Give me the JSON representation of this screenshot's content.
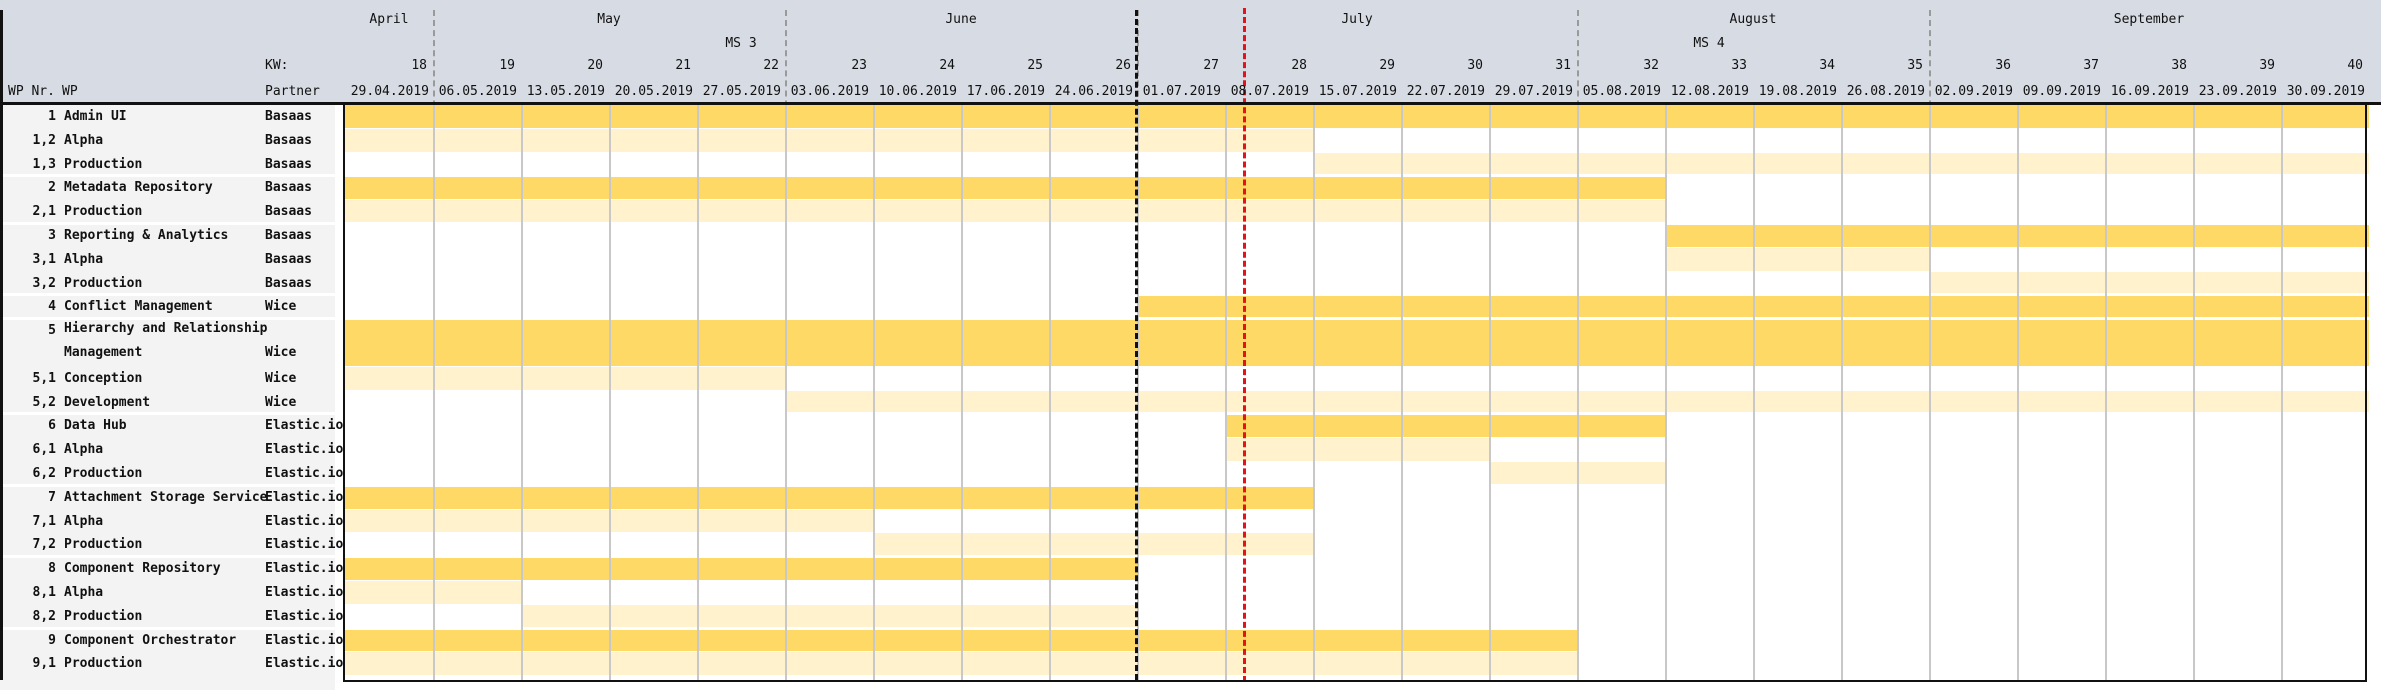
{
  "chart_data": {
    "type": "gantt",
    "header": {
      "months": [
        {
          "label": "April",
          "start_week": 18,
          "end_week": 18
        },
        {
          "label": "May",
          "start_week": 19,
          "end_week": 22
        },
        {
          "label": "June",
          "start_week": 23,
          "end_week": 26
        },
        {
          "label": "July",
          "start_week": 27,
          "end_week": 31
        },
        {
          "label": "August",
          "start_week": 32,
          "end_week": 35
        },
        {
          "label": "September",
          "start_week": 36,
          "end_week": 40
        }
      ],
      "milestones": [
        {
          "label": "MS 3",
          "week": 22
        },
        {
          "label": "MS 4",
          "week": 33
        }
      ],
      "kw_label": "KW:",
      "col_wpnr": "WP Nr.",
      "col_wp": "WP",
      "col_partner": "Partner"
    },
    "weeks": [
      {
        "kw": "18",
        "date": "29.04.2019"
      },
      {
        "kw": "19",
        "date": "06.05.2019"
      },
      {
        "kw": "20",
        "date": "13.05.2019"
      },
      {
        "kw": "21",
        "date": "20.05.2019"
      },
      {
        "kw": "22",
        "date": "27.05.2019"
      },
      {
        "kw": "23",
        "date": "03.06.2019"
      },
      {
        "kw": "24",
        "date": "10.06.2019"
      },
      {
        "kw": "25",
        "date": "17.06.2019"
      },
      {
        "kw": "26",
        "date": "24.06.2019"
      },
      {
        "kw": "27",
        "date": "01.07.2019"
      },
      {
        "kw": "28",
        "date": "08.07.2019"
      },
      {
        "kw": "29",
        "date": "15.07.2019"
      },
      {
        "kw": "30",
        "date": "22.07.2019"
      },
      {
        "kw": "31",
        "date": "29.07.2019"
      },
      {
        "kw": "32",
        "date": "05.08.2019"
      },
      {
        "kw": "33",
        "date": "12.08.2019"
      },
      {
        "kw": "34",
        "date": "19.08.2019"
      },
      {
        "kw": "35",
        "date": "26.08.2019"
      },
      {
        "kw": "36",
        "date": "02.09.2019"
      },
      {
        "kw": "37",
        "date": "09.09.2019"
      },
      {
        "kw": "38",
        "date": "16.09.2019"
      },
      {
        "kw": "39",
        "date": "23.09.2019"
      },
      {
        "kw": "40",
        "date": "30.09.2019"
      }
    ],
    "phase_boundary_week": 27,
    "today_marker_week": 28.2,
    "colors": {
      "main": "#ffd966",
      "sub": "#fff2cc",
      "today": "#e3121b"
    },
    "tasks": [
      {
        "wp": "1",
        "name": "Admin UI",
        "partner": "Basaas",
        "level": "main",
        "start": 18,
        "end": 40
      },
      {
        "wp": "1,2",
        "name": "Alpha",
        "partner": "Basaas",
        "level": "sub",
        "start": 18,
        "end": 28
      },
      {
        "wp": "1,3",
        "name": "Production",
        "partner": "Basaas",
        "level": "sub",
        "start": 29,
        "end": 40
      },
      {
        "wp": "2",
        "name": "Metadata Repository",
        "partner": "Basaas",
        "level": "main",
        "start": 18,
        "end": 32
      },
      {
        "wp": "2,1",
        "name": "Production",
        "partner": "Basaas",
        "level": "sub",
        "start": 18,
        "end": 32
      },
      {
        "wp": "3",
        "name": "Reporting & Analytics",
        "partner": "Basaas",
        "level": "main",
        "start": 33,
        "end": 40
      },
      {
        "wp": "3,1",
        "name": "Alpha",
        "partner": "Basaas",
        "level": "sub",
        "start": 33,
        "end": 35
      },
      {
        "wp": "3,2",
        "name": "Production",
        "partner": "Basaas",
        "level": "sub",
        "start": 36,
        "end": 40
      },
      {
        "wp": "4",
        "name": "Conflict Management",
        "partner": "Wice",
        "level": "main",
        "start": 27,
        "end": 40
      },
      {
        "wp": "5",
        "name": "Hierarchy and Relationship",
        "name2": "Management",
        "partner": "Wice",
        "level": "main",
        "start": 18,
        "end": 40,
        "tall": true
      },
      {
        "wp": "5,1",
        "name": "Conception",
        "partner": "Wice",
        "level": "sub",
        "start": 18,
        "end": 22
      },
      {
        "wp": "5,2",
        "name": "Development",
        "partner": "Wice",
        "level": "sub",
        "start": 23,
        "end": 40
      },
      {
        "wp": "6",
        "name": "Data Hub",
        "partner": "Elastic.io",
        "level": "main",
        "start": 28,
        "end": 32
      },
      {
        "wp": "6,1",
        "name": "Alpha",
        "partner": "Elastic.io",
        "level": "sub",
        "start": 28,
        "end": 30
      },
      {
        "wp": "6,2",
        "name": "Production",
        "partner": "Elastic.io",
        "level": "sub",
        "start": 31,
        "end": 32
      },
      {
        "wp": "7",
        "name": "Attachment Storage Service",
        "partner": "Elastic.io",
        "level": "main",
        "start": 18,
        "end": 28
      },
      {
        "wp": "7,1",
        "name": "Alpha",
        "partner": "Elastic.io",
        "level": "sub",
        "start": 18,
        "end": 23
      },
      {
        "wp": "7,2",
        "name": "Production",
        "partner": "Elastic.io",
        "level": "sub",
        "start": 24,
        "end": 28
      },
      {
        "wp": "8",
        "name": "Component Repository",
        "partner": "Elastic.io",
        "level": "main",
        "start": 18,
        "end": 26
      },
      {
        "wp": "8,1",
        "name": "Alpha",
        "partner": "Elastic.io",
        "level": "sub",
        "start": 18,
        "end": 19
      },
      {
        "wp": "8,2",
        "name": "Production",
        "partner": "Elastic.io",
        "level": "sub",
        "start": 20,
        "end": 26
      },
      {
        "wp": "9",
        "name": "Component Orchestrator",
        "partner": "Elastic.io",
        "level": "main",
        "start": 18,
        "end": 31
      },
      {
        "wp": "9,1",
        "name": "Production",
        "partner": "Elastic.io",
        "level": "sub",
        "start": 18,
        "end": 31
      }
    ]
  }
}
